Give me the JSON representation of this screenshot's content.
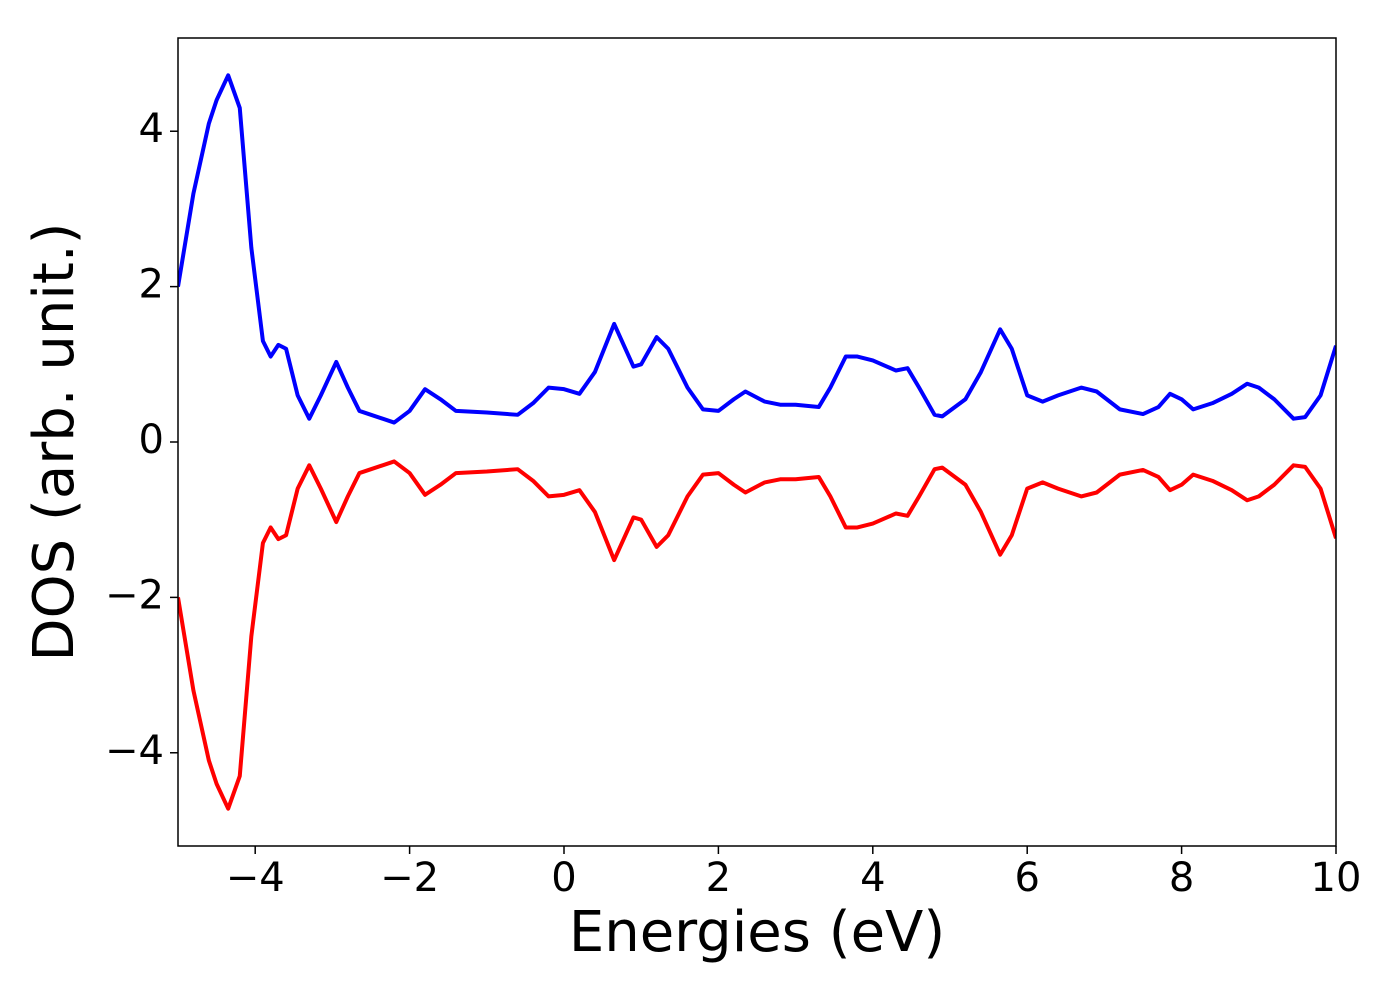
{
  "chart_data": {
    "type": "line",
    "x_label": "Energies (eV)",
    "y_label": "DOS (arb. unit.)",
    "x": [
      -5,
      -4.8,
      -4.6,
      -4.5,
      -4.35,
      -4.2,
      -4.05,
      -3.9,
      -3.8,
      -3.7,
      -3.6,
      -3.45,
      -3.3,
      -3.15,
      -2.95,
      -2.8,
      -2.65,
      -2.5,
      -2.2,
      -2.0,
      -1.8,
      -1.6,
      -1.4,
      -1.0,
      -0.6,
      -0.4,
      -0.2,
      0,
      0.2,
      0.4,
      0.65,
      0.9,
      1.0,
      1.2,
      1.35,
      1.6,
      1.8,
      2.0,
      2.2,
      2.35,
      2.6,
      2.8,
      3.0,
      3.3,
      3.45,
      3.65,
      3.8,
      4.0,
      4.3,
      4.45,
      4.6,
      4.8,
      4.9,
      5.2,
      5.4,
      5.65,
      5.8,
      6.0,
      6.2,
      6.4,
      6.7,
      6.9,
      7.2,
      7.5,
      7.7,
      7.85,
      8.0,
      8.15,
      8.4,
      8.65,
      8.85,
      9.0,
      9.2,
      9.45,
      9.6,
      9.8,
      10.0
    ],
    "series": [
      {
        "color": "#0000ff",
        "values": [
          2.0,
          3.2,
          4.1,
          4.4,
          4.72,
          4.3,
          2.5,
          1.3,
          1.1,
          1.25,
          1.2,
          0.6,
          0.3,
          0.6,
          1.03,
          0.7,
          0.4,
          0.35,
          0.25,
          0.4,
          0.68,
          0.55,
          0.4,
          0.38,
          0.35,
          0.5,
          0.7,
          0.68,
          0.62,
          0.9,
          1.52,
          0.97,
          1.0,
          1.35,
          1.2,
          0.7,
          0.42,
          0.4,
          0.55,
          0.65,
          0.52,
          0.48,
          0.48,
          0.45,
          0.7,
          1.1,
          1.1,
          1.05,
          0.92,
          0.95,
          0.7,
          0.35,
          0.33,
          0.55,
          0.9,
          1.45,
          1.2,
          0.6,
          0.52,
          0.6,
          0.7,
          0.65,
          0.42,
          0.36,
          0.45,
          0.62,
          0.55,
          0.42,
          0.5,
          0.62,
          0.75,
          0.7,
          0.55,
          0.3,
          0.32,
          0.6,
          1.24
        ]
      },
      {
        "color": "#ff0000",
        "values": [
          -2.0,
          -3.2,
          -4.1,
          -4.4,
          -4.72,
          -4.3,
          -2.5,
          -1.3,
          -1.1,
          -1.25,
          -1.2,
          -0.6,
          -0.3,
          -0.6,
          -1.03,
          -0.7,
          -0.4,
          -0.35,
          -0.25,
          -0.4,
          -0.68,
          -0.55,
          -0.4,
          -0.38,
          -0.35,
          -0.5,
          -0.7,
          -0.68,
          -0.62,
          -0.9,
          -1.52,
          -0.97,
          -1.0,
          -1.35,
          -1.2,
          -0.7,
          -0.42,
          -0.4,
          -0.55,
          -0.65,
          -0.52,
          -0.48,
          -0.48,
          -0.45,
          -0.7,
          -1.1,
          -1.1,
          -1.05,
          -0.92,
          -0.95,
          -0.7,
          -0.35,
          -0.33,
          -0.55,
          -0.9,
          -1.45,
          -1.2,
          -0.6,
          -0.52,
          -0.6,
          -0.7,
          -0.65,
          -0.42,
          -0.36,
          -0.45,
          -0.62,
          -0.55,
          -0.42,
          -0.5,
          -0.62,
          -0.75,
          -0.7,
          -0.55,
          -0.3,
          -0.32,
          -0.6,
          -1.24
        ]
      }
    ],
    "xlim": [
      -5,
      10
    ],
    "ylim": [
      -5.2,
      5.2
    ],
    "xticks": [
      {
        "value": -4,
        "label": "−4"
      },
      {
        "value": -2,
        "label": "−2"
      },
      0,
      2,
      4,
      6,
      8,
      10
    ],
    "yticks": [
      {
        "value": -4,
        "label": "−4"
      },
      {
        "value": -2,
        "label": "−2"
      },
      0,
      2,
      4
    ],
    "grid": false
  }
}
